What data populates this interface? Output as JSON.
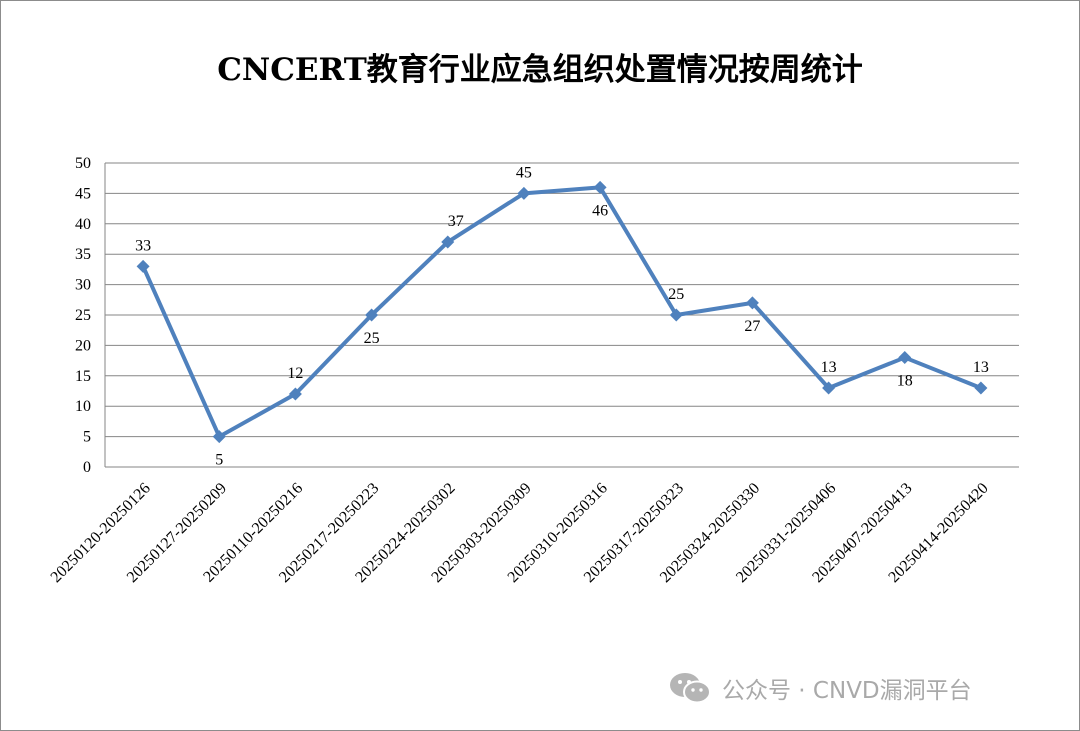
{
  "chart_data": {
    "type": "line",
    "title": "CNCERT教育行业应急组织处置情况按周统计",
    "categories": [
      "20250120-20250126",
      "20250127-20250209",
      "20250110-20250216",
      "20250217-20250223",
      "20250224-20250302",
      "20250303-20250309",
      "20250310-20250316",
      "20250317-20250323",
      "20250324-20250330",
      "20250331-20250406",
      "20250407-20250413",
      "20250414-20250420"
    ],
    "series": [
      {
        "values": [
          33,
          5,
          12,
          25,
          37,
          45,
          46,
          25,
          27,
          13,
          18,
          13
        ]
      }
    ],
    "data_labels": [
      "33",
      "5",
      "12",
      "25",
      "37",
      "45",
      "46",
      "25",
      "27",
      "13",
      "18",
      "13"
    ],
    "ylim": [
      0,
      50
    ],
    "yticks": [
      0,
      5,
      10,
      15,
      20,
      25,
      30,
      35,
      40,
      45,
      50
    ],
    "grid": true,
    "line_color": "#4f81bd",
    "xlabel": "",
    "ylabel": ""
  },
  "watermark": {
    "text": "公众号 · CNVD漏洞平台",
    "icon": "wechat-icon"
  }
}
